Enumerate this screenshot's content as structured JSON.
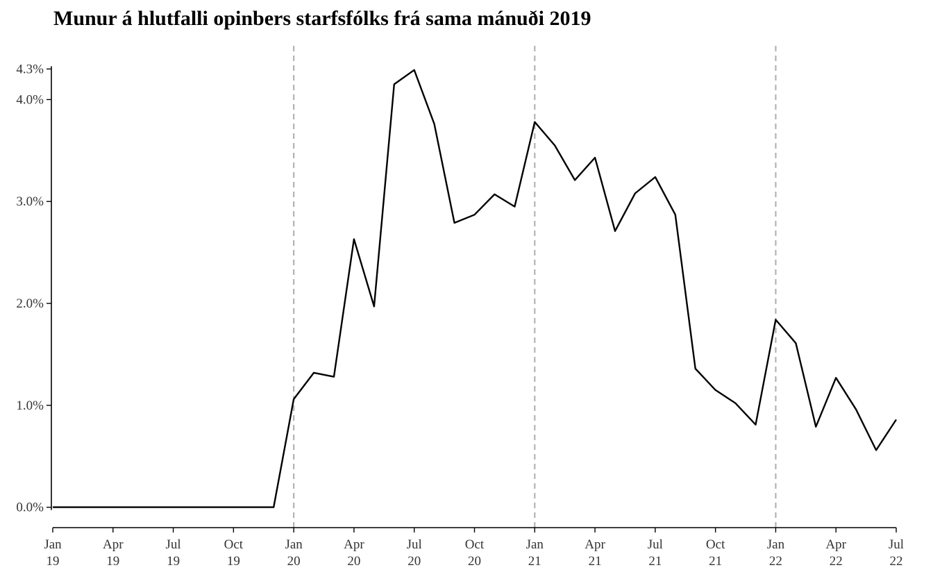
{
  "chart_data": {
    "type": "line",
    "title": "Munur á hlutfalli opinbers starfsfólks frá sama mánuði 2019",
    "xlabel": "",
    "ylabel": "",
    "x_start": "2019-01",
    "x_end": "2022-07",
    "ylim": [
      -0.2,
      4.5
    ],
    "y_ticks": [
      {
        "value": 0.0,
        "label": "0.0%"
      },
      {
        "value": 1.0,
        "label": "1.0%"
      },
      {
        "value": 2.0,
        "label": "2.0%"
      },
      {
        "value": 3.0,
        "label": "3.0%"
      },
      {
        "value": 4.0,
        "label": "4.0%"
      },
      {
        "value": 4.3,
        "label": "4.3%"
      }
    ],
    "x_ticks": [
      {
        "month": "2019-01",
        "label1": "Jan",
        "label2": "19"
      },
      {
        "month": "2019-04",
        "label1": "Apr",
        "label2": "19"
      },
      {
        "month": "2019-07",
        "label1": "Jul",
        "label2": "19"
      },
      {
        "month": "2019-10",
        "label1": "Oct",
        "label2": "19"
      },
      {
        "month": "2020-01",
        "label1": "Jan",
        "label2": "20"
      },
      {
        "month": "2020-04",
        "label1": "Apr",
        "label2": "20"
      },
      {
        "month": "2020-07",
        "label1": "Jul",
        "label2": "20"
      },
      {
        "month": "2020-10",
        "label1": "Oct",
        "label2": "20"
      },
      {
        "month": "2021-01",
        "label1": "Jan",
        "label2": "21"
      },
      {
        "month": "2021-04",
        "label1": "Apr",
        "label2": "21"
      },
      {
        "month": "2021-07",
        "label1": "Jul",
        "label2": "21"
      },
      {
        "month": "2021-10",
        "label1": "Oct",
        "label2": "21"
      },
      {
        "month": "2022-01",
        "label1": "Jan",
        "label2": "22"
      },
      {
        "month": "2022-04",
        "label1": "Apr",
        "label2": "22"
      },
      {
        "month": "2022-07",
        "label1": "Jul",
        "label2": "22"
      }
    ],
    "vlines": [
      "2020-01",
      "2021-01",
      "2022-01"
    ],
    "grid": false,
    "legend": "none",
    "line_color": "#000000",
    "vline_color": "#b3b3b3",
    "series": [
      {
        "x": [
          "2019-01",
          "2019-02",
          "2019-03",
          "2019-04",
          "2019-05",
          "2019-06",
          "2019-07",
          "2019-08",
          "2019-09",
          "2019-10",
          "2019-11",
          "2019-12",
          "2020-01",
          "2020-02",
          "2020-03",
          "2020-04",
          "2020-05",
          "2020-06",
          "2020-07",
          "2020-08",
          "2020-09",
          "2020-10",
          "2020-11",
          "2020-12",
          "2021-01",
          "2021-02",
          "2021-03",
          "2021-04",
          "2021-05",
          "2021-06",
          "2021-07",
          "2021-08",
          "2021-09",
          "2021-10",
          "2021-11",
          "2021-12",
          "2022-01",
          "2022-02",
          "2022-03",
          "2022-04",
          "2022-05",
          "2022-06",
          "2022-07"
        ],
        "values": [
          0,
          0,
          0,
          0,
          0,
          0,
          0,
          0,
          0,
          0,
          0,
          0,
          1.06,
          1.32,
          1.28,
          2.63,
          1.97,
          4.15,
          4.29,
          3.76,
          2.79,
          2.87,
          3.07,
          2.95,
          3.78,
          3.55,
          3.21,
          3.43,
          2.71,
          3.08,
          3.24,
          2.87,
          1.36,
          1.15,
          1.02,
          0.81,
          1.84,
          1.61,
          0.79,
          1.27,
          0.96,
          0.56,
          0.86
        ]
      }
    ]
  }
}
